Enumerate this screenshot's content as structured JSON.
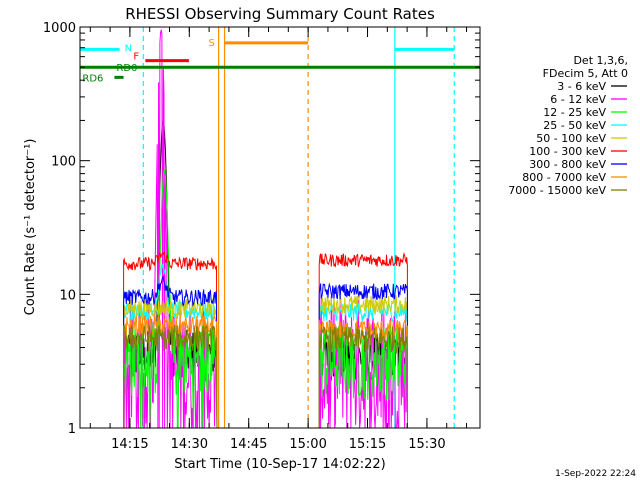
{
  "chart_data": {
    "type": "line",
    "title": "RHESSI Observing Summary Count Rates",
    "xlabel": "Start Time (10-Sep-17 14:02:22)",
    "ylabel": "Count Rate (s⁻¹ detector⁻¹)",
    "yscale": "log",
    "ylim": [
      1,
      1000
    ],
    "xlim_minutes": [
      0,
      101
    ],
    "x_ticks": [
      {
        "min": 12.6,
        "label": "14:15"
      },
      {
        "min": 27.6,
        "label": "14:30"
      },
      {
        "min": 42.6,
        "label": "14:45"
      },
      {
        "min": 57.6,
        "label": "15:00"
      },
      {
        "min": 72.6,
        "label": "15:15"
      },
      {
        "min": 87.6,
        "label": "15:30"
      }
    ],
    "y_ticks": [
      {
        "value": 1,
        "label": "1"
      },
      {
        "value": 10,
        "label": "10"
      },
      {
        "value": 100,
        "label": "100"
      },
      {
        "value": 1000,
        "label": "1000"
      }
    ],
    "legend_header": [
      "Det 1,3,6,",
      "FDecim 5, Att 0"
    ],
    "legend_position": "right",
    "series": [
      {
        "name": "3 - 6 keV",
        "color": "#000000",
        "seg1": 3.6,
        "seg2": 3.4,
        "noise": 0.18
      },
      {
        "name": "6 - 12 keV",
        "color": "#ff00ff",
        "seg1": 2.6,
        "seg2": 2.8,
        "noise": 0.55
      },
      {
        "name": "12 - 25 keV",
        "color": "#00ff00",
        "seg1": 3.3,
        "seg2": 3.2,
        "noise": 0.3
      },
      {
        "name": "25 - 50 keV",
        "color": "#00ffff",
        "seg1": 7.5,
        "seg2": 7.4,
        "noise": 0.07
      },
      {
        "name": "50 - 100 keV",
        "color": "#cccc00",
        "seg1": 7.9,
        "seg2": 8.4,
        "noise": 0.07
      },
      {
        "name": "100 - 300 keV",
        "color": "#ff0000",
        "seg1": 17.0,
        "seg2": 18.0,
        "noise": 0.05
      },
      {
        "name": "300 - 800 keV",
        "color": "#0000ff",
        "seg1": 9.5,
        "seg2": 10.5,
        "noise": 0.06
      },
      {
        "name": "800 - 7000 keV",
        "color": "#ff8c00",
        "seg1": 5.8,
        "seg2": 5.4,
        "noise": 0.08
      },
      {
        "name": "7000 - 15000 keV",
        "color": "#808000",
        "seg1": 4.7,
        "seg2": 4.6,
        "noise": 0.1
      }
    ],
    "segments_minutes": [
      [
        11.0,
        34.6
      ],
      [
        60.4,
        82.7
      ]
    ],
    "flare_peak": {
      "magenta_min": 20.5,
      "magenta_peak": 950,
      "black_min": 21.0,
      "black_peak": 195,
      "green_min": 21.3,
      "green_peak": 80
    },
    "flags": [
      {
        "label": "N",
        "color": "#00ffff",
        "from": 0,
        "to": 10.0,
        "y": 680
      },
      {
        "label": "",
        "color": "#00ffff",
        "from": 79.5,
        "to": 94.5,
        "y": 680
      },
      {
        "label": "F",
        "color": "#ff0000",
        "from": 16.5,
        "to": 27.5,
        "y": 560
      },
      {
        "label": "S",
        "color": "#ff8c00",
        "from": 36.5,
        "to": 57.6,
        "y": 760
      },
      {
        "label": "RD0",
        "color": "#008000",
        "from": 0,
        "to": 101,
        "y": 500
      },
      {
        "label": "RD6",
        "color": "#008000",
        "from": 8.7,
        "to": 11.0,
        "y": 420
      }
    ],
    "vlines": [
      {
        "min": 16.0,
        "color": "#00ffff",
        "dash": true
      },
      {
        "min": 35.0,
        "color": "#ff8c00",
        "dash": false
      },
      {
        "min": 36.5,
        "color": "#ff8c00",
        "dash": false
      },
      {
        "min": 57.6,
        "color": "#ff8c00",
        "dash": true
      },
      {
        "min": 79.5,
        "color": "#00ffff",
        "dash": false
      },
      {
        "min": 94.5,
        "color": "#00ffff",
        "dash": true
      }
    ]
  },
  "footer_timestamp": "1-Sep-2022 22:24"
}
